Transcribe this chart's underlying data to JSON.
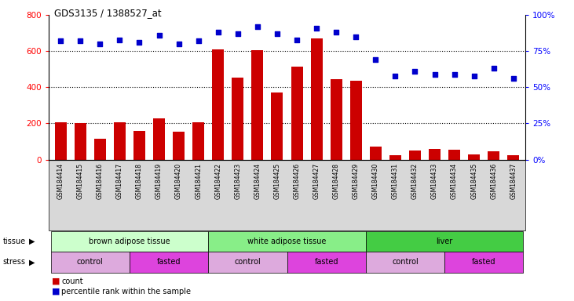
{
  "title": "GDS3135 / 1388527_at",
  "samples": [
    "GSM184414",
    "GSM184415",
    "GSM184416",
    "GSM184417",
    "GSM184418",
    "GSM184419",
    "GSM184420",
    "GSM184421",
    "GSM184422",
    "GSM184423",
    "GSM184424",
    "GSM184425",
    "GSM184426",
    "GSM184427",
    "GSM184428",
    "GSM184429",
    "GSM184430",
    "GSM184431",
    "GSM184432",
    "GSM184433",
    "GSM184434",
    "GSM184435",
    "GSM184436",
    "GSM184437"
  ],
  "counts": [
    205,
    200,
    115,
    205,
    160,
    230,
    155,
    205,
    610,
    455,
    605,
    370,
    515,
    670,
    445,
    435,
    70,
    25,
    50,
    60,
    55,
    30,
    45,
    25
  ],
  "percentiles": [
    82,
    82,
    80,
    83,
    81,
    86,
    80,
    82,
    88,
    87,
    92,
    87,
    83,
    91,
    88,
    85,
    69,
    58,
    61,
    59,
    59,
    58,
    63,
    56
  ],
  "bar_color": "#cc0000",
  "dot_color": "#0000cc",
  "tissue_groups": [
    {
      "label": "brown adipose tissue",
      "start": 0,
      "end": 7,
      "color": "#ccffcc"
    },
    {
      "label": "white adipose tissue",
      "start": 8,
      "end": 15,
      "color": "#88ee88"
    },
    {
      "label": "liver",
      "start": 16,
      "end": 23,
      "color": "#44cc44"
    }
  ],
  "stress_groups": [
    {
      "label": "control",
      "start": 0,
      "end": 3,
      "color": "#ddaadd"
    },
    {
      "label": "fasted",
      "start": 4,
      "end": 7,
      "color": "#dd44dd"
    },
    {
      "label": "control",
      "start": 8,
      "end": 11,
      "color": "#ddaadd"
    },
    {
      "label": "fasted",
      "start": 12,
      "end": 15,
      "color": "#dd44dd"
    },
    {
      "label": "control",
      "start": 16,
      "end": 19,
      "color": "#ddaadd"
    },
    {
      "label": "fasted",
      "start": 20,
      "end": 23,
      "color": "#dd44dd"
    }
  ],
  "tissue_label": "tissue",
  "stress_label": "stress",
  "legend_count_label": "count",
  "legend_pct_label": "percentile rank within the sample"
}
